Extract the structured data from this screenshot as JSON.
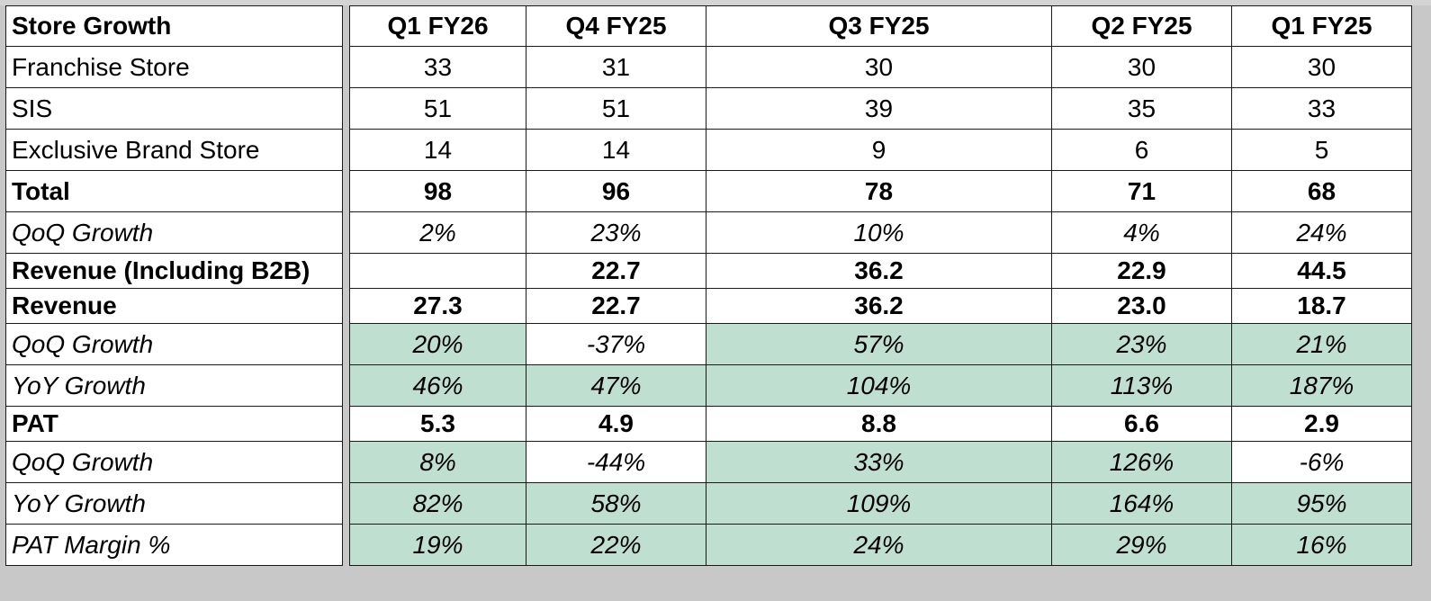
{
  "columns": {
    "label": "Store Growth",
    "q1fy26": "Q1 FY26",
    "q4fy25": "Q4 FY25",
    "q3fy25": "Q3 FY25",
    "q2fy25": "Q2 FY25",
    "q1fy25": "Q1 FY25"
  },
  "rows": {
    "franchise": {
      "label": "Franchise Store",
      "v": [
        "33",
        "31",
        "30",
        "30",
        "30"
      ]
    },
    "sis": {
      "label": "SIS",
      "v": [
        "51",
        "51",
        "39",
        "35",
        "33"
      ]
    },
    "ebs": {
      "label": "Exclusive Brand Store",
      "v": [
        "14",
        "14",
        "9",
        "6",
        "5"
      ]
    },
    "total": {
      "label": "Total",
      "v": [
        "98",
        "96",
        "78",
        "71",
        "68"
      ]
    },
    "store_qoq": {
      "label": "QoQ Growth",
      "v": [
        "2%",
        "23%",
        "10%",
        "4%",
        "24%"
      ]
    },
    "rev_b2b": {
      "label": "Revenue (Including  B2B)",
      "v": [
        "",
        "22.7",
        "36.2",
        "22.9",
        "44.5"
      ]
    },
    "revenue": {
      "label": "Revenue",
      "v": [
        "27.3",
        "22.7",
        "36.2",
        "23.0",
        "18.7"
      ]
    },
    "rev_qoq": {
      "label": "QoQ Growth",
      "v": [
        "20%",
        "-37%",
        "57%",
        "23%",
        "21%"
      ]
    },
    "rev_yoy": {
      "label": "YoY Growth",
      "v": [
        "46%",
        "47%",
        "104%",
        "113%",
        "187%"
      ]
    },
    "pat": {
      "label": "PAT",
      "v": [
        "5.3",
        "4.9",
        "8.8",
        "6.6",
        "2.9"
      ]
    },
    "pat_qoq": {
      "label": "QoQ Growth",
      "v": [
        "8%",
        "-44%",
        "33%",
        "126%",
        "-6%"
      ]
    },
    "pat_yoy": {
      "label": "YoY Growth",
      "v": [
        "82%",
        "58%",
        "109%",
        "164%",
        "95%"
      ]
    },
    "pat_margin": {
      "label": "PAT Margin %",
      "v": [
        "19%",
        "22%",
        "24%",
        "29%",
        "16%"
      ]
    }
  },
  "colors": {
    "header_yellow": "#ffff55",
    "growth_green": "#bfe0d0",
    "growth_red_text": "#e8261c"
  }
}
